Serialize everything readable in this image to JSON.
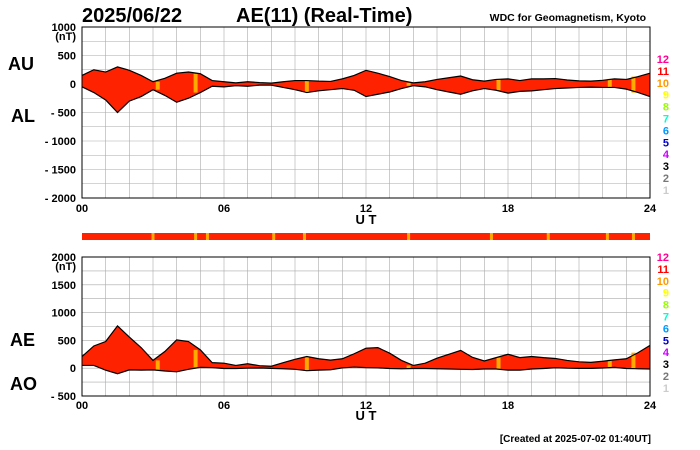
{
  "header": {
    "date": "2025/06/22",
    "title": "AE(11) (Real-Time)",
    "source": "WDC for Geomagnetism, Kyoto"
  },
  "footer": {
    "created": "[Created at 2025-07-02 01:40UT]"
  },
  "colors": {
    "fill": "#ff2200",
    "quality_band": "#ff2200",
    "marker": "#ffaa00",
    "grid": "#aaaaaa",
    "line": "#000000"
  },
  "legend": {
    "labels": [
      "12",
      "11",
      "10",
      "9",
      "8",
      "7",
      "6",
      "5",
      "4",
      "3",
      "2",
      "1"
    ],
    "colors": [
      "#ff0099",
      "#ff0000",
      "#ff9900",
      "#ffff00",
      "#99ff00",
      "#00ffcc",
      "#0099ff",
      "#0000cc",
      "#cc00ff",
      "#000000",
      "#777777",
      "#cccccc"
    ]
  },
  "chart_data": [
    {
      "id": "au-al",
      "type": "area",
      "side_labels": [
        "AU",
        "AL"
      ],
      "unit_label": "(nT)",
      "ylim": [
        -2000,
        1000
      ],
      "yticks": [
        "1000",
        "500",
        "0",
        "- 500",
        "- 1000",
        "- 1500",
        "- 2000"
      ],
      "ytick_values": [
        1000,
        500,
        0,
        -500,
        -1000,
        -1500,
        -2000
      ],
      "xlabel": "U T",
      "xlim": [
        0,
        24
      ],
      "xticks": [
        "00",
        "06",
        "12",
        "18",
        "24"
      ],
      "xtick_values": [
        0,
        6,
        12,
        18,
        24
      ],
      "x": [
        0,
        0.5,
        1,
        1.5,
        2,
        2.5,
        3,
        3.5,
        4,
        4.5,
        5,
        5.5,
        6,
        6.5,
        7,
        7.5,
        8,
        8.5,
        9,
        9.5,
        10,
        10.5,
        11,
        11.5,
        12,
        12.5,
        13,
        13.5,
        14,
        14.5,
        15,
        15.5,
        16,
        16.5,
        17,
        17.5,
        18,
        18.5,
        19,
        19.5,
        20,
        20.5,
        21,
        21.5,
        22,
        22.5,
        23,
        23.5,
        24
      ],
      "series": [
        {
          "name": "AU",
          "values": [
            150,
            250,
            210,
            300,
            240,
            150,
            40,
            100,
            190,
            210,
            180,
            60,
            40,
            20,
            40,
            25,
            15,
            40,
            60,
            60,
            50,
            45,
            90,
            150,
            240,
            190,
            130,
            60,
            20,
            40,
            80,
            110,
            140,
            75,
            50,
            80,
            90,
            60,
            90,
            90,
            95,
            70,
            55,
            50,
            65,
            90,
            80,
            130,
            190
          ]
        },
        {
          "name": "AL",
          "values": [
            -50,
            -150,
            -280,
            -500,
            -300,
            -220,
            -100,
            -200,
            -320,
            -250,
            -150,
            -40,
            -50,
            -30,
            -40,
            -20,
            -20,
            -60,
            -100,
            -150,
            -120,
            -100,
            -80,
            -110,
            -220,
            -180,
            -140,
            -80,
            -30,
            -50,
            -100,
            -140,
            -180,
            -120,
            -80,
            -110,
            -160,
            -130,
            -120,
            -100,
            -80,
            -70,
            -60,
            -55,
            -60,
            -60,
            -90,
            -150,
            -220
          ]
        }
      ],
      "quality_markers": [
        3.2,
        4.8,
        9.5,
        13.8,
        17.6,
        22.3,
        23.3
      ]
    },
    {
      "id": "ae-ao",
      "type": "area",
      "side_labels": [
        "AE",
        "AO"
      ],
      "unit_label": "(nT)",
      "ylim": [
        -500,
        2000
      ],
      "yticks": [
        "2000",
        "1500",
        "1000",
        "500",
        "0",
        "- 500"
      ],
      "ytick_values": [
        2000,
        1500,
        1000,
        500,
        0,
        -500
      ],
      "xlabel": "U T",
      "xlim": [
        0,
        24
      ],
      "xticks": [
        "00",
        "06",
        "12",
        "18",
        "24"
      ],
      "xtick_values": [
        0,
        6,
        12,
        18,
        24
      ],
      "x": [
        0,
        0.5,
        1,
        1.5,
        2,
        2.5,
        3,
        3.5,
        4,
        4.5,
        5,
        5.5,
        6,
        6.5,
        7,
        7.5,
        8,
        8.5,
        9,
        9.5,
        10,
        10.5,
        11,
        11.5,
        12,
        12.5,
        13,
        13.5,
        14,
        14.5,
        15,
        15.5,
        16,
        16.5,
        17,
        17.5,
        18,
        18.5,
        19,
        19.5,
        20,
        20.5,
        21,
        21.5,
        22,
        22.5,
        23,
        23.5,
        24
      ],
      "series": [
        {
          "name": "AE",
          "values": [
            210,
            400,
            480,
            760,
            560,
            370,
            140,
            300,
            510,
            480,
            330,
            100,
            90,
            50,
            80,
            45,
            35,
            100,
            160,
            210,
            170,
            145,
            170,
            260,
            360,
            370,
            270,
            140,
            50,
            90,
            180,
            250,
            320,
            195,
            130,
            190,
            250,
            190,
            210,
            190,
            175,
            140,
            115,
            105,
            125,
            150,
            170,
            280,
            410
          ]
        },
        {
          "name": "AO",
          "values": [
            50,
            50,
            -35,
            -100,
            -30,
            -35,
            -30,
            -50,
            -65,
            -20,
            15,
            10,
            -5,
            -5,
            0,
            3,
            -3,
            -10,
            -20,
            -45,
            -35,
            -28,
            5,
            20,
            10,
            5,
            -5,
            -10,
            -5,
            -5,
            -10,
            -15,
            -20,
            -23,
            -15,
            -15,
            -35,
            -35,
            -15,
            -5,
            8,
            0,
            -3,
            -3,
            3,
            15,
            -5,
            -10,
            -15
          ]
        }
      ],
      "quality_markers": [
        3.2,
        4.8,
        9.5,
        13.8,
        17.6,
        22.3,
        23.3
      ]
    }
  ],
  "quality_strip": {
    "markers": [
      3,
      4.8,
      5.3,
      8.1,
      9.4,
      13.8,
      17.3,
      19.7,
      22.2,
      23.3
    ]
  }
}
